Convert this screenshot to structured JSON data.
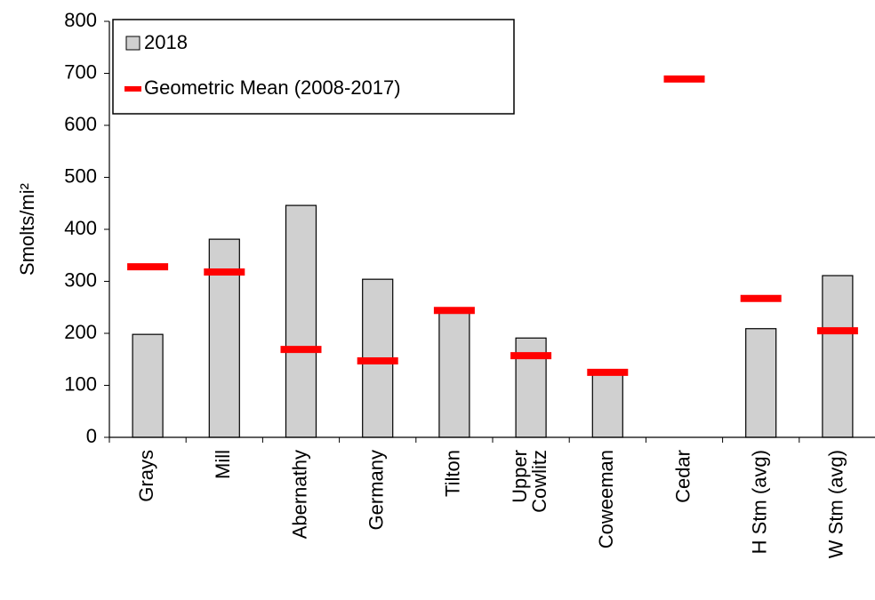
{
  "chart_data": {
    "type": "bar",
    "ylabel": "Smolts/mi²",
    "categories": [
      "Grays",
      "Mill",
      "Abernathy",
      "Germany",
      "Tilton",
      "Upper\nCowlitz",
      "Coweeman",
      "Cedar",
      "H Stm (avg)",
      "W Stm (avg)"
    ],
    "series": [
      {
        "name": "2018",
        "type": "bar",
        "color": "#d0d0d0",
        "values": [
          198,
          381,
          446,
          304,
          244,
          191,
          120,
          null,
          209,
          311
        ]
      },
      {
        "name": "Geometric Mean (2008-2017)",
        "type": "marker",
        "color": "#ff0000",
        "values": [
          328,
          318,
          169,
          147,
          244,
          157,
          125,
          689,
          267,
          205
        ]
      }
    ],
    "ylim": [
      0,
      800
    ],
    "yticks": [
      0,
      100,
      200,
      300,
      400,
      500,
      600,
      700,
      800
    ],
    "legend": "top-left"
  }
}
